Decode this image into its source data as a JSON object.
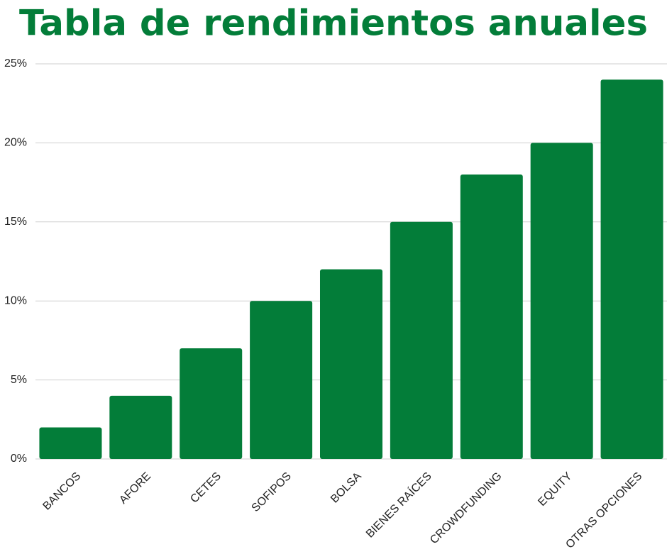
{
  "chart_data": {
    "type": "bar",
    "title": "Tabla de rendimientos anuales",
    "categories": [
      "BANCOS",
      "AFORE",
      "CETES",
      "SOFIPOS",
      "BOLSA",
      "BIENES RAÍCES",
      "CROWDFUNDING",
      "EQUITY",
      "OTRAS OPCIONES"
    ],
    "values": [
      2,
      4,
      7,
      10,
      12,
      15,
      18,
      20,
      24
    ],
    "color": "#037d39",
    "ylim": [
      0,
      25
    ],
    "yticks": [
      {
        "value": 0,
        "label": "0%"
      },
      {
        "value": 5,
        "label": "5%"
      },
      {
        "value": 10,
        "label": "10%"
      },
      {
        "value": 15,
        "label": "15%"
      },
      {
        "value": 20,
        "label": "20%"
      },
      {
        "value": 25,
        "label": "25%"
      }
    ],
    "grid": true
  }
}
